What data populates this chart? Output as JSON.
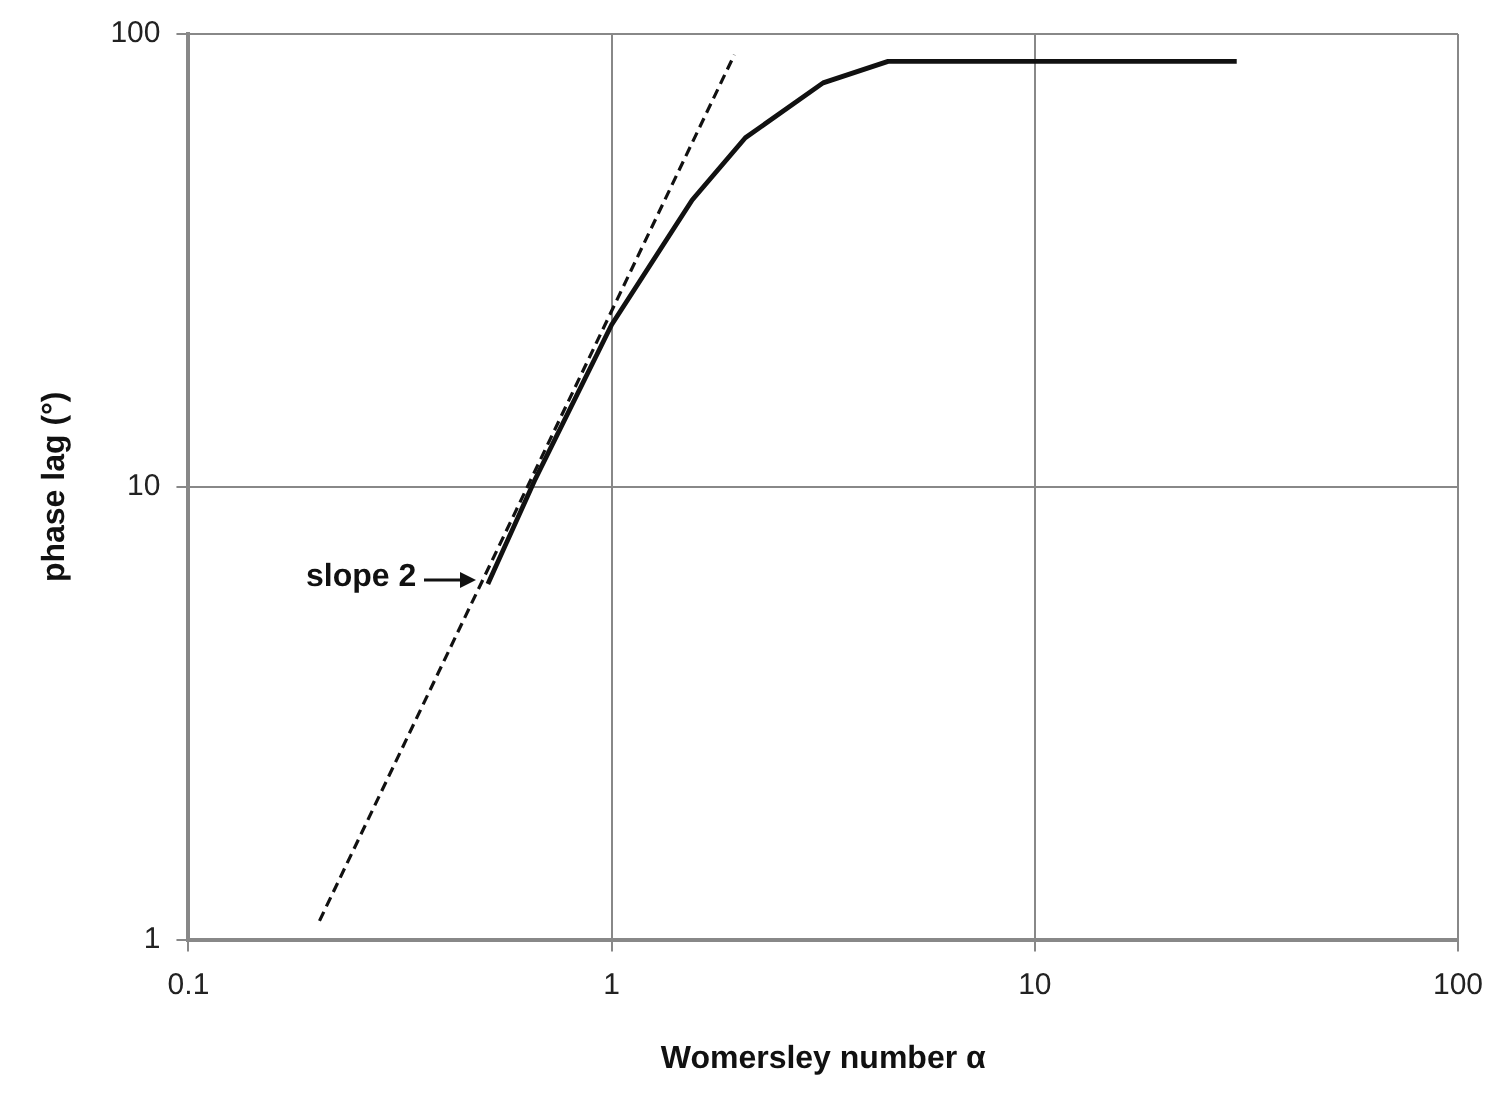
{
  "chart_data": {
    "type": "line",
    "xlabel": "Womersley number α",
    "ylabel": "phase lag (°)",
    "log": "xy",
    "xlim": [
      0.1,
      100
    ],
    "ylim": [
      1,
      100
    ],
    "xticks": [
      0.1,
      1,
      10,
      100
    ],
    "yticks": [
      1,
      10,
      100
    ],
    "grid": true,
    "legend": false,
    "marker": "none",
    "series": [
      {
        "color": "#111111",
        "line_style": "solid",
        "x": [
          0.51,
          0.66,
          1,
          1.55,
          2.07,
          3.16,
          4.5,
          10,
          30
        ],
        "values": [
          6.1,
          10.4,
          22.8,
          43,
          59,
          78,
          87,
          87,
          87
        ]
      },
      {
        "color": "#111111",
        "line_style": "dashed",
        "x": [
          0.204,
          1.95
        ],
        "values": [
          1.1,
          90
        ]
      }
    ],
    "annotations": [
      {
        "text": "slope 2",
        "x": 0.5,
        "y": 6
      }
    ]
  }
}
